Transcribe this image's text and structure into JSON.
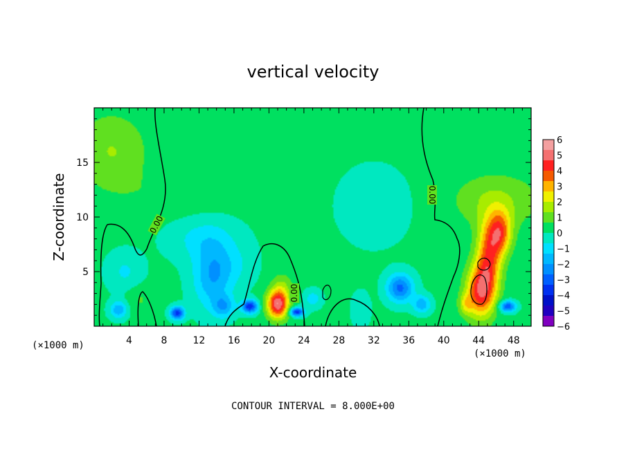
{
  "chart_data": {
    "type": "heatmap",
    "title": "vertical velocity",
    "xlabel": "X-coordinate",
    "ylabel": "Z-coordinate",
    "x_unit_left": "(×1000 m)",
    "x_unit_right": "(×1000 m)",
    "xlim": [
      0,
      50
    ],
    "ylim": [
      0,
      20
    ],
    "x_ticks": [
      4,
      8,
      12,
      16,
      20,
      24,
      28,
      32,
      36,
      40,
      44,
      48
    ],
    "y_ticks": [
      5,
      10,
      15
    ],
    "colorbar": {
      "min": -6,
      "max": 6,
      "labels": [
        "6",
        "5",
        "4",
        "3",
        "2",
        "1",
        "0",
        "−1",
        "−2",
        "−3",
        "−4",
        "−5",
        "−6"
      ],
      "colors": [
        "#f4a0a0",
        "#f47070",
        "#ff2020",
        "#f55a00",
        "#ffb400",
        "#f0f000",
        "#a8ec00",
        "#60e020",
        "#00e060",
        "#00e8c0",
        "#00e0ff",
        "#00b8ff",
        "#0090ff",
        "#0060ff",
        "#0030f0",
        "#0010c8",
        "#2000c0",
        "#8000c0"
      ]
    },
    "contour_label": "0.00",
    "contour_interval": "CONTOUR INTERVAL = 8.000E+00",
    "features": [
      {
        "x": 45.2,
        "z": 6.5,
        "w": 3.5,
        "s": 3.2,
        "r": 1.4
      },
      {
        "x": 46.5,
        "z": 8.6,
        "w": 3.2,
        "s": 2.0,
        "r": 1.3
      },
      {
        "x": 44.2,
        "z": 3.2,
        "w": 4.2,
        "s": 2.4,
        "r": 1.6
      },
      {
        "x": 46.0,
        "z": 11.5,
        "w": 1.2,
        "s": 2.5,
        "r": 5.0
      },
      {
        "x": 42.5,
        "z": 2.0,
        "w": 1.5,
        "s": 1.0,
        "r": 0.8
      },
      {
        "x": 21.0,
        "z": 2.0,
        "w": 5.0,
        "s": 1.3,
        "r": 1.2
      },
      {
        "x": 21.5,
        "z": 3.6,
        "w": 1.0,
        "s": 1.3,
        "r": 1.2
      },
      {
        "x": 2.0,
        "z": 16.0,
        "w": 1.2,
        "s": 3.5,
        "r": 4.0
      },
      {
        "x": 5.2,
        "z": 2.5,
        "w": 0.6,
        "s": 1.2,
        "r": 1.5
      },
      {
        "x": 13.5,
        "z": 4.5,
        "w": -2.0,
        "s": 3.0,
        "r": 2.2
      },
      {
        "x": 12.5,
        "z": 8.0,
        "w": -1.0,
        "s": 2.0,
        "r": 4.0
      },
      {
        "x": 16.0,
        "z": 5.5,
        "w": -0.7,
        "s": 2.0,
        "r": 2.5
      },
      {
        "x": 9.5,
        "z": 1.2,
        "w": -3.8,
        "s": 0.6,
        "r": 0.8
      },
      {
        "x": 14.8,
        "z": 1.8,
        "w": -1.8,
        "s": 1.0,
        "r": 1.2
      },
      {
        "x": 17.8,
        "z": 1.8,
        "w": -4.0,
        "s": 0.6,
        "r": 0.9
      },
      {
        "x": 23.2,
        "z": 1.3,
        "w": -4.0,
        "s": 0.4,
        "r": 0.8
      },
      {
        "x": 25.0,
        "z": 2.5,
        "w": -1.2,
        "s": 0.8,
        "r": 1.0
      },
      {
        "x": 35.0,
        "z": 3.5,
        "w": -3.0,
        "s": 1.3,
        "r": 1.5
      },
      {
        "x": 37.5,
        "z": 2.0,
        "w": -2.0,
        "s": 0.8,
        "r": 1.0
      },
      {
        "x": 32.0,
        "z": 11.0,
        "w": -0.6,
        "s": 3.5,
        "r": 4.0
      },
      {
        "x": 47.3,
        "z": 1.8,
        "w": -3.5,
        "s": 0.5,
        "r": 0.9
      },
      {
        "x": 3.5,
        "z": 5.0,
        "w": -0.9,
        "s": 1.8,
        "r": 2.0
      },
      {
        "x": 2.8,
        "z": 1.5,
        "w": -2.0,
        "s": 0.8,
        "r": 1.0
      },
      {
        "x": 30.5,
        "z": 1.5,
        "w": -0.8,
        "s": 1.5,
        "r": 1.0
      },
      {
        "x": 8.5,
        "z": 12.0,
        "w": 0.4,
        "s": 2.0,
        "r": 6.0
      }
    ]
  }
}
